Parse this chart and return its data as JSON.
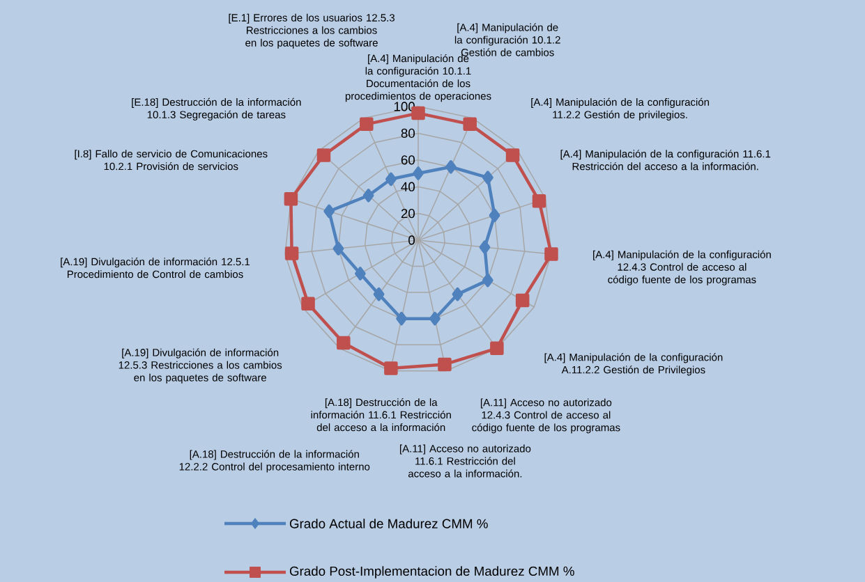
{
  "chart_data": {
    "type": "radar",
    "categories": [
      "[A.4] Manipulación de la configuración 10.1.1 Documentación de los procedimientos de operaciones",
      "[A.4] Manipulación de la configuración 10.1.2 Gestión de cambios",
      "[A.4] Manipulación de la configuración 11.2.2 Gestión de privilegios.",
      "[A.4] Manipulación de la configuración 11.6.1 Restricción del acceso a la información.",
      "[A.4] Manipulación de la configuración 12.4.3 Control de acceso al código fuente de los programas",
      "[A.4] Manipulación de la configuración A.11.2.2 Gestión de Privilegios",
      "[A.11] Acceso no autorizado 12.4.3 Control de acceso al código fuente de los programas",
      "[A.11] Acceso no autorizado 11.6.1 Restricción del acceso a la información.",
      "[A.18] Destrucción de la información 11.6.1 Restricción del acceso a la información",
      "[A.18] Destrucción de la información 12.2.2 Control del procesamiento interno",
      "[A.19] Divulgación de información 12.5.3 Restricciones a los cambios en los paquetes de software",
      "[A.19] Divulgación de información 12.5.1 Procedimiento de Control de cambios",
      "[I.8] Fallo de servicio de Comunicaciones 10.2.1 Provisión de servicios",
      "[E.18] Destrucción de la información 10.1.3 Segregación de tareas",
      "[E.1] Errores de los usuarios 12.5.3 Restricciones a los cambios en los paquetes de software"
    ],
    "series": [
      {
        "name": "Grado Actual de Madurez CMM %",
        "color": "#4f81bd",
        "marker": "diamond",
        "values": [
          50,
          60,
          70,
          60,
          50,
          60,
          50,
          60,
          60,
          50,
          50,
          60,
          70,
          50,
          50
        ]
      },
      {
        "name": "Grado Post-Implementacion de Madurez CMM %",
        "color": "#c0504d",
        "marker": "square",
        "values": [
          95,
          95,
          95,
          95,
          100,
          90,
          100,
          95,
          98,
          95,
          95,
          95,
          100,
          95,
          95
        ]
      }
    ],
    "ylim": [
      0,
      100
    ],
    "yticks": [
      0,
      20,
      40,
      60,
      80,
      100
    ],
    "grid": true,
    "legend": "bottom"
  }
}
